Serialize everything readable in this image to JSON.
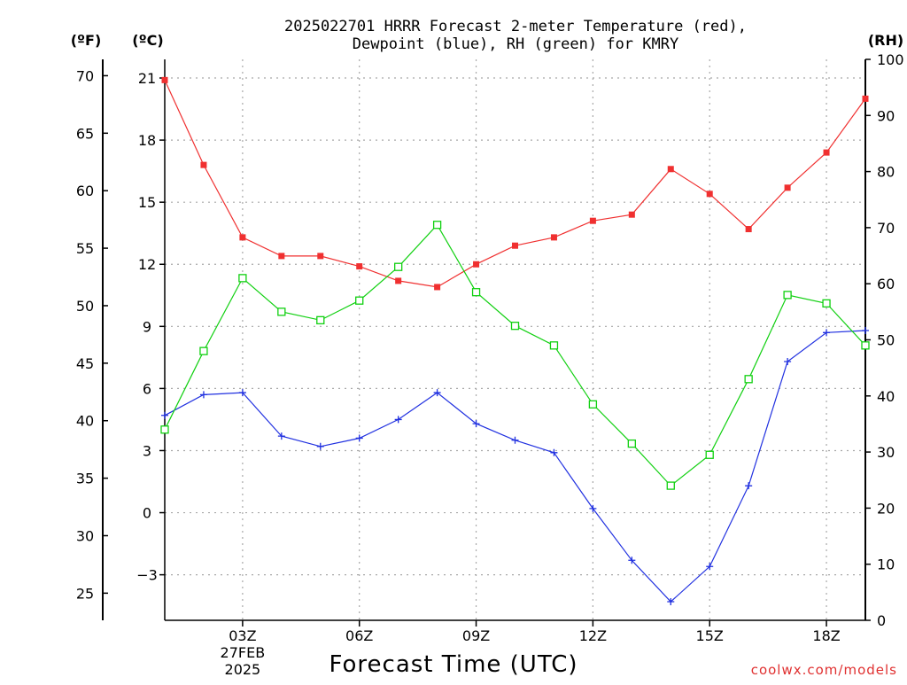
{
  "chart_data": {
    "type": "line",
    "title_line1": "2025022701 HRRR Forecast 2-meter Temperature (red),",
    "title_line2": "Dewpoint (blue), RH (green) for KMRY",
    "xlabel": "Forecast Time (UTC)",
    "credit": "coolwx.com/models",
    "units": {
      "fahrenheit": "(ºF)",
      "celsius": "(ºC)",
      "rh": "(RH)"
    },
    "x": [
      1,
      2,
      3,
      4,
      5,
      6,
      7,
      8,
      9,
      10,
      11,
      12,
      13,
      14,
      15,
      16,
      17,
      18,
      19
    ],
    "xlim": [
      1,
      19
    ],
    "x_ticks": [
      {
        "x": 3,
        "label": "03Z",
        "sub1": "27FEB",
        "sub2": "2025"
      },
      {
        "x": 6,
        "label": "06Z",
        "sub1": "",
        "sub2": ""
      },
      {
        "x": 9,
        "label": "09Z",
        "sub1": "",
        "sub2": ""
      },
      {
        "x": 12,
        "label": "12Z",
        "sub1": "",
        "sub2": ""
      },
      {
        "x": 15,
        "label": "15Z",
        "sub1": "",
        "sub2": ""
      },
      {
        "x": 18,
        "label": "18Z",
        "sub1": "",
        "sub2": ""
      }
    ],
    "celsius_axis": {
      "ylim": [
        -5.2,
        21.9
      ],
      "ticks": [
        21,
        18,
        15,
        12,
        9,
        6,
        3,
        0,
        -3
      ],
      "labels": [
        "21",
        "18",
        "15",
        "12",
        "9",
        "6",
        "3",
        "0",
        "−3"
      ]
    },
    "fahrenheit_axis": {
      "ylim": [
        22.64,
        71.42
      ],
      "ticks": [
        70,
        65,
        60,
        55,
        50,
        45,
        40,
        35,
        30,
        25
      ],
      "labels": [
        "70",
        "65",
        "60",
        "55",
        "50",
        "45",
        "40",
        "35",
        "30",
        "25"
      ]
    },
    "rh_axis": {
      "ylim": [
        0,
        100
      ],
      "ticks": [
        100,
        90,
        80,
        70,
        60,
        50,
        40,
        30,
        20,
        10,
        0
      ],
      "labels": [
        "100",
        "90",
        "80",
        "70",
        "60",
        "50",
        "40",
        "30",
        "20",
        "10",
        "0"
      ]
    },
    "grid": true,
    "series": [
      {
        "key": "temperature",
        "axis": "celsius",
        "color": "#f03030",
        "marker": "filled-square",
        "values": [
          20.9,
          16.8,
          13.3,
          12.4,
          12.4,
          11.9,
          11.2,
          10.9,
          12.0,
          12.9,
          13.3,
          14.1,
          14.4,
          16.6,
          15.4,
          13.7,
          15.7,
          17.4,
          20.0
        ]
      },
      {
        "key": "dewpoint",
        "axis": "celsius",
        "color": "#2030e0",
        "marker": "plus",
        "values": [
          4.7,
          5.7,
          5.8,
          3.7,
          3.2,
          3.6,
          4.5,
          5.8,
          4.3,
          3.5,
          2.9,
          0.2,
          -2.3,
          -4.3,
          -2.6,
          1.3,
          7.3,
          8.7,
          8.8
        ]
      },
      {
        "key": "rh",
        "axis": "rh",
        "color": "#10d010",
        "marker": "open-square",
        "values": [
          34,
          48,
          61,
          55,
          53.5,
          57,
          63,
          70.5,
          58.5,
          52.5,
          49,
          38.5,
          31.5,
          24,
          29.5,
          43,
          58,
          56.5,
          49
        ]
      }
    ]
  }
}
